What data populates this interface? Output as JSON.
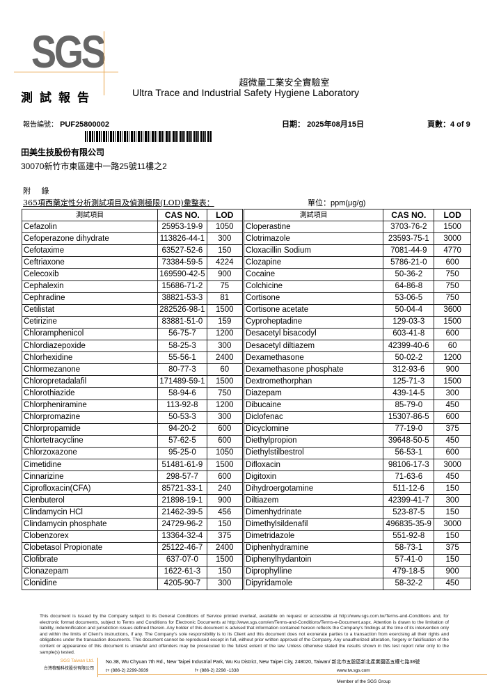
{
  "logo": {
    "text": "SGS",
    "accent": "#e8a040",
    "gray": "#666666"
  },
  "header": {
    "lab_cn": "超微量工業安全實驗室",
    "report_cn": "測試報告",
    "lab_en": "Ultra Trace and Industrial Safety Hygiene Laboratory",
    "report_no_label": "報告編號：",
    "report_no": "PUF25800002",
    "date_label": "日期：",
    "date": "2025年08月15日",
    "page_label": "頁數：",
    "page": "4 of 9"
  },
  "client": {
    "name": "田美生技股份有限公司",
    "address": "30070新竹市東區建中一路25號11樓之2"
  },
  "appendix": {
    "label": "附 錄",
    "title": "365項西藥定性分析測試項目及偵測極限(LOD)彙整表：",
    "unit": "單位：ppm(μg/g)"
  },
  "table": {
    "headers": [
      "測試項目",
      "CAS NO.",
      "LOD"
    ],
    "left": [
      [
        "Cefazolin",
        "25953-19-9",
        "1050"
      ],
      [
        "Cefoperazone dihydrate",
        "113826-44-1",
        "300"
      ],
      [
        "Cefotaxime",
        "63527-52-6",
        "150"
      ],
      [
        "Ceftriaxone",
        "73384-59-5",
        "4224"
      ],
      [
        "Celecoxib",
        "169590-42-5",
        "900"
      ],
      [
        "Cephalexin",
        "15686-71-2",
        "75"
      ],
      [
        "Cephradine",
        "38821-53-3",
        "81"
      ],
      [
        "Cetilistat",
        "282526-98-1",
        "1500"
      ],
      [
        "Cetirizine",
        "83881-51-0",
        "159"
      ],
      [
        "Chloramphenicol",
        "56-75-7",
        "1200"
      ],
      [
        "Chlordiazepoxide",
        "58-25-3",
        "300"
      ],
      [
        "Chlorhexidine",
        "55-56-1",
        "2400"
      ],
      [
        "Chlormezanone",
        "80-77-3",
        "60"
      ],
      [
        "Chloropretadalafil",
        "171489-59-1",
        "1500"
      ],
      [
        "Chlorothiazide",
        "58-94-6",
        "750"
      ],
      [
        "Chlorpheniramine",
        "113-92-8",
        "1200"
      ],
      [
        "Chlorpromazine",
        "50-53-3",
        "300"
      ],
      [
        "Chlorpropamide",
        "94-20-2",
        "600"
      ],
      [
        "Chlortetracycline",
        "57-62-5",
        "600"
      ],
      [
        "Chlorzoxazone",
        "95-25-0",
        "1050"
      ],
      [
        "Cimetidine",
        "51481-61-9",
        "1500"
      ],
      [
        "Cinnarizine",
        "298-57-7",
        "600"
      ],
      [
        "Ciprofloxacin(CFA)",
        "85721-33-1",
        "240"
      ],
      [
        "Clenbuterol",
        "21898-19-1",
        "900"
      ],
      [
        "Clindamycin HCl",
        "21462-39-5",
        "456"
      ],
      [
        "Clindamycin phosphate",
        "24729-96-2",
        "150"
      ],
      [
        "Clobenzorex",
        "13364-32-4",
        "375"
      ],
      [
        "Clobetasol Propionate",
        "25122-46-7",
        "2400"
      ],
      [
        "Clofibrate",
        "637-07-0",
        "1500"
      ],
      [
        "Clonazepam",
        "1622-61-3",
        "150"
      ],
      [
        "Clonidine",
        "4205-90-7",
        "300"
      ]
    ],
    "right": [
      [
        "Cloperastine",
        "3703-76-2",
        "1500"
      ],
      [
        "Clotrimazole",
        "23593-75-1",
        "3000"
      ],
      [
        "Cloxacillin Sodium",
        "7081-44-9",
        "4770"
      ],
      [
        "Clozapine",
        "5786-21-0",
        "600"
      ],
      [
        "Cocaine",
        "50-36-2",
        "750"
      ],
      [
        "Colchicine",
        "64-86-8",
        "750"
      ],
      [
        "Cortisone",
        "53-06-5",
        "750"
      ],
      [
        "Cortisone acetate",
        "50-04-4",
        "3600"
      ],
      [
        "Cyproheptadine",
        "129-03-3",
        "1500"
      ],
      [
        "Desacetyl bisacodyl",
        "603-41-8",
        "600"
      ],
      [
        "Desacetyl diltiazem",
        "42399-40-6",
        "60"
      ],
      [
        "Dexamethasone",
        "50-02-2",
        "1200"
      ],
      [
        "Dexamethasone phosphate",
        "312-93-6",
        "900"
      ],
      [
        "Dextromethorphan",
        "125-71-3",
        "1500"
      ],
      [
        "Diazepam",
        "439-14-5",
        "300"
      ],
      [
        "Dibucaine",
        "85-79-0",
        "450"
      ],
      [
        "Diclofenac",
        "15307-86-5",
        "600"
      ],
      [
        "Dicyclomine",
        "77-19-0",
        "375"
      ],
      [
        "Diethylpropion",
        "39648-50-5",
        "450"
      ],
      [
        "Diethylstilbestrol",
        "56-53-1",
        "600"
      ],
      [
        "Difloxacin",
        "98106-17-3",
        "3000"
      ],
      [
        "Digitoxin",
        "71-63-6",
        "450"
      ],
      [
        "Dihydroergotamine",
        "511-12-6",
        "150"
      ],
      [
        "Diltiazem",
        "42399-41-7",
        "300"
      ],
      [
        "Dimenhydrinate",
        "523-87-5",
        "150"
      ],
      [
        "Dimethylsildenafil",
        "496835-35-9",
        "3000"
      ],
      [
        "Dimetridazole",
        "551-92-8",
        "150"
      ],
      [
        "Diphenhydramine",
        "58-73-1",
        "375"
      ],
      [
        "Diphenylhydantoin",
        "57-41-0",
        "150"
      ],
      [
        "Diprophylline",
        "479-18-5",
        "900"
      ],
      [
        "Dipyridamole",
        "58-32-2",
        "450"
      ]
    ]
  },
  "footer": {
    "disclaimer_1": "This document is issued by the Company subject to its General Conditions of Service printed overleaf, available on request or accessible at ",
    "link_1": "http://www.sgs.com.tw/Terms-and-Conditions",
    "disclaimer_2": " and, for electronic format documents, subject to Terms and Conditions for Electronic Documents at ",
    "link_2": "http://www.sgs.com/en/Terms-and-Conditions/Terms-e-Document.aspx.",
    "disclaimer_3": " Attention is drawn to the limitation of liability, indemnification and jurisdiction issues defined therein. Any holder of this document is advised that information contained hereon reflects the Company's findings at the time of its intervention only and within the limits of Client's instructions, if any. The Company's sole responsibility is to its Client and this document does not exonerate parties to a transaction from exercising all their rights and obligations under the transaction documents. This document cannot be reproduced except in full, without prior written approval of the Company. Any unauthorized alteration, forgery or falsification of the content or appearance of this document is unlawful and offenders may be prosecuted to the fullest extent of the law. Unless otherwise stated the results shown in this test report refer only to the sample(s) tested.",
    "company_en": "SGS Taiwan Ltd.",
    "company_cn": "台灣檢驗科技股份有限公司",
    "address": "No.38, Wu Chyuan 7th Rd., New Taipei Industrial Park, Wu Ku District, New Taipei City, 248020, Taiwan/ 新北市五股區新北產業園區五權七路38號",
    "tel": "t+ (886-2) 2299-3939",
    "fax": "f+ (886-2) 2298 -1338",
    "web": "www.tw.sgs.com",
    "member": "Member of the SGS Group"
  }
}
